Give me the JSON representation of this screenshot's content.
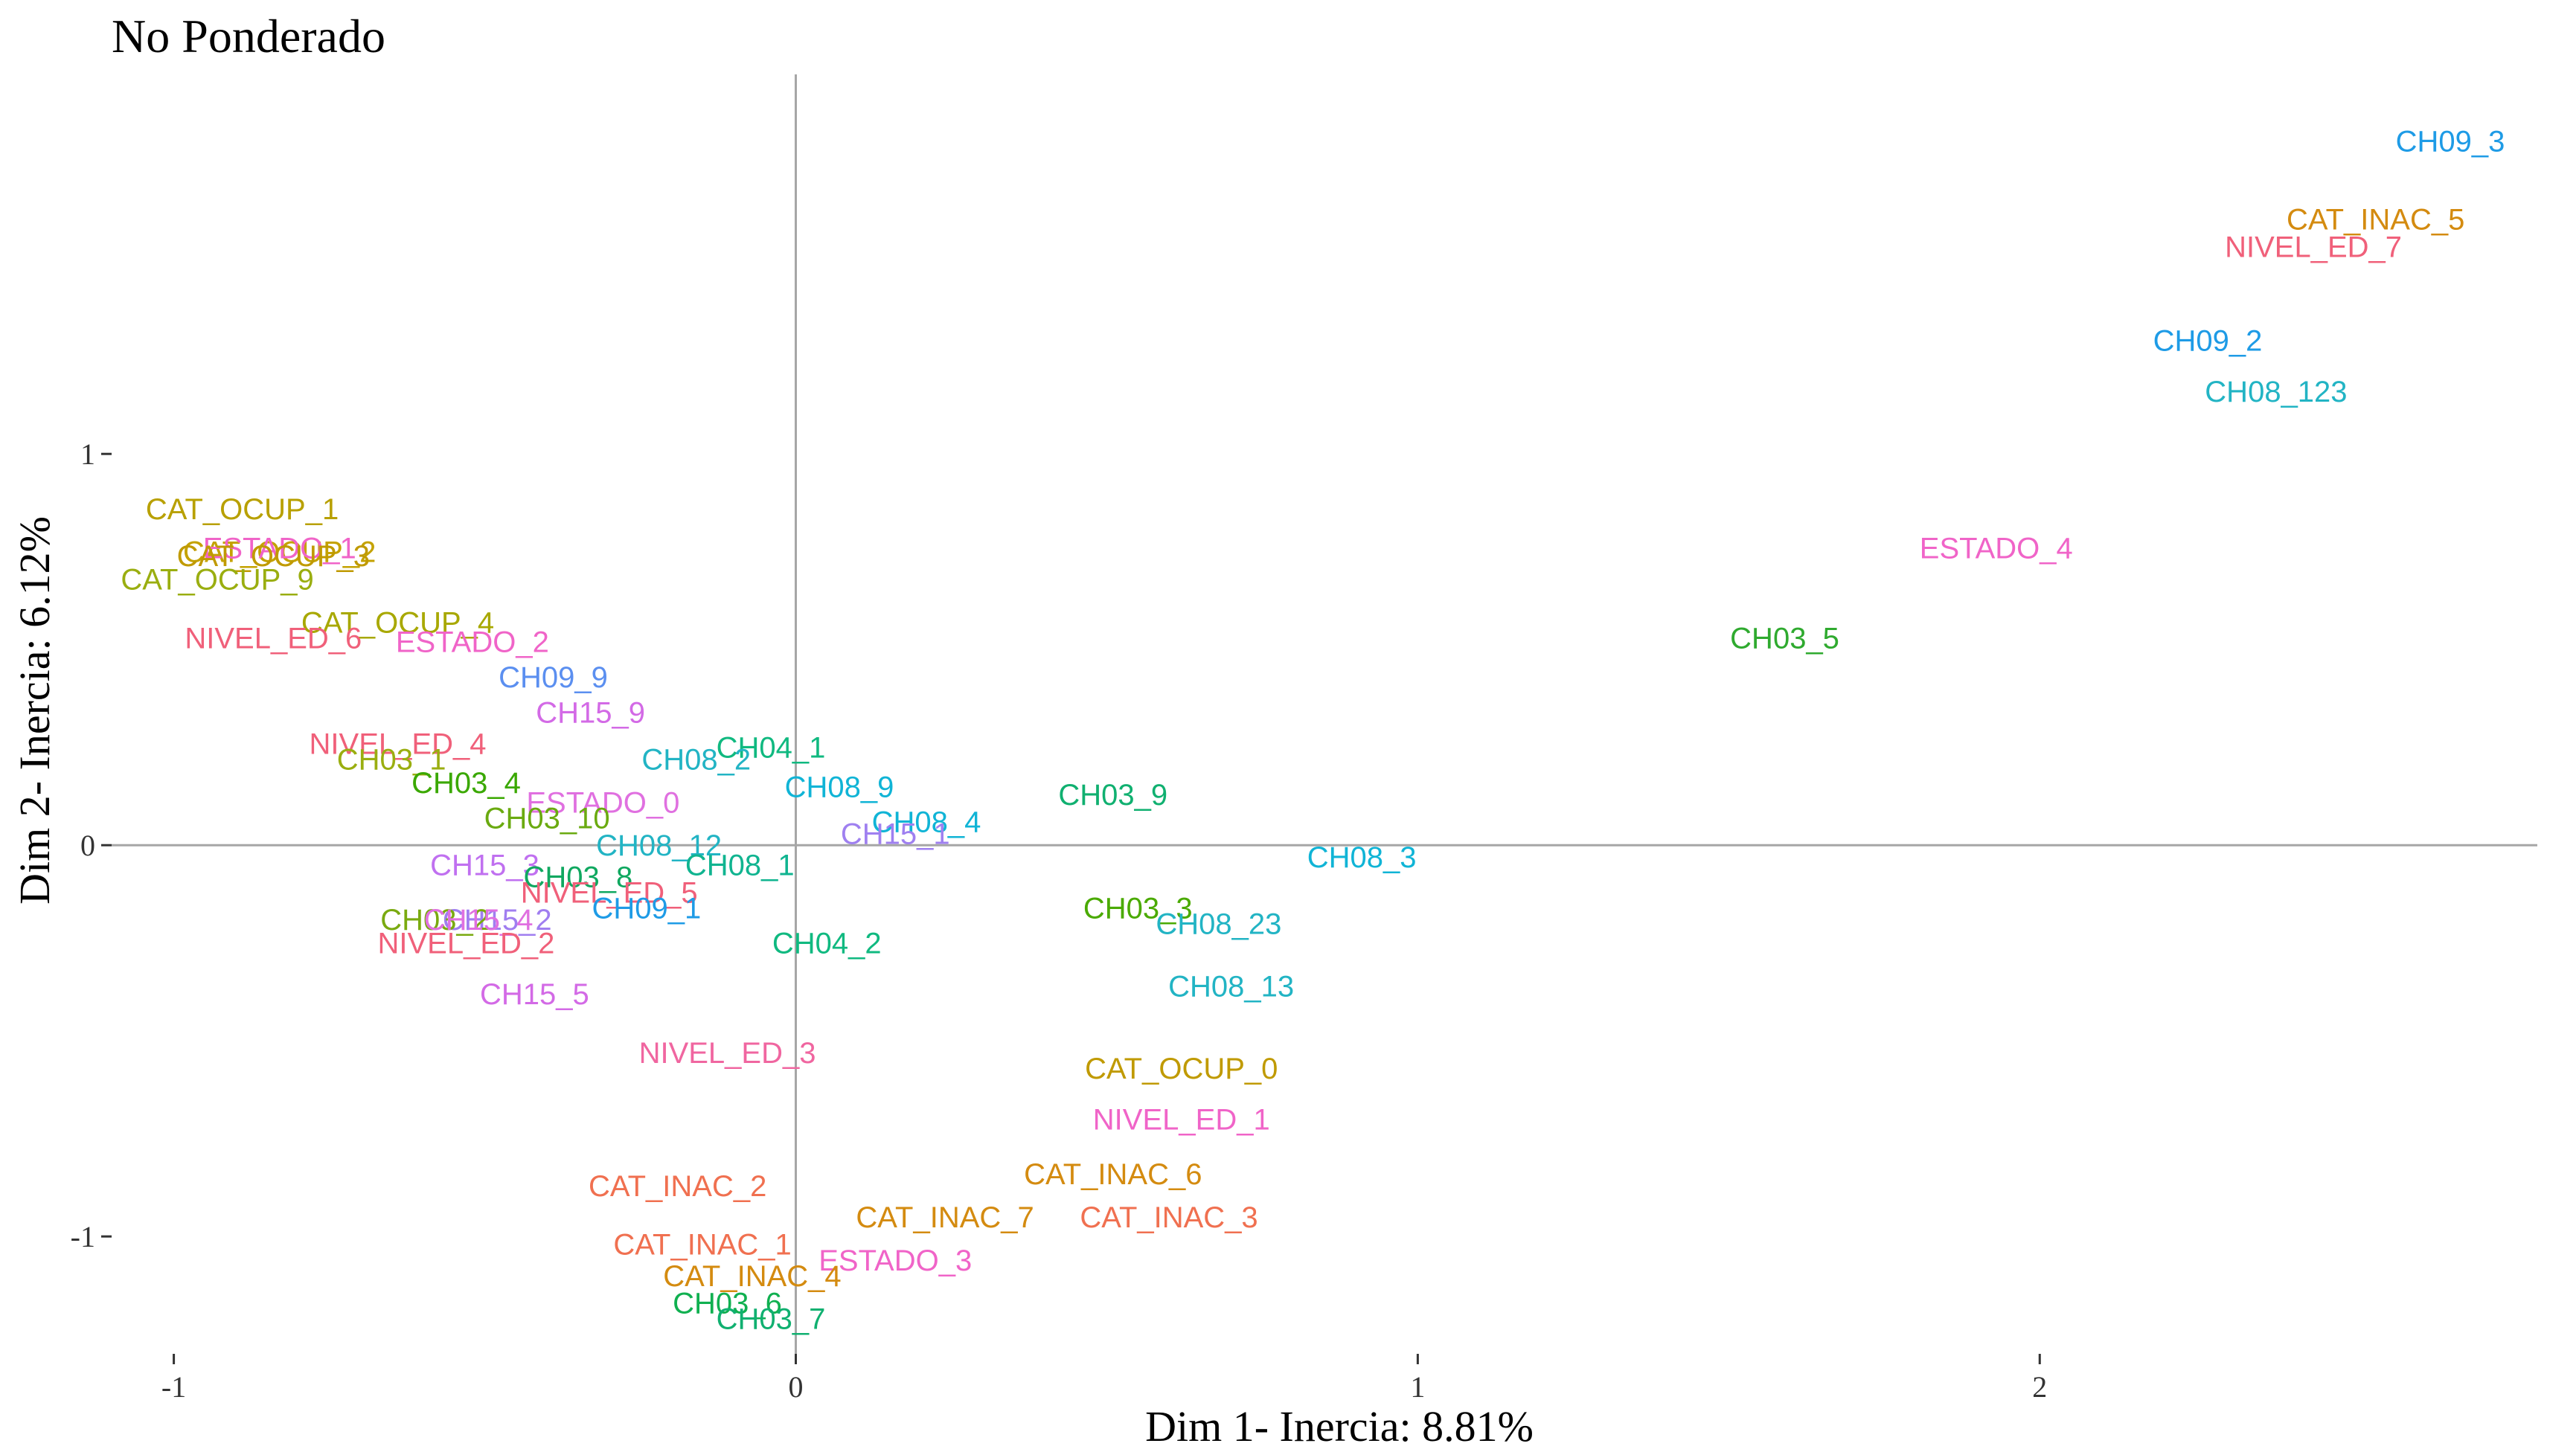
{
  "chart_data": {
    "type": "scatter",
    "title": "No Ponderado",
    "xlabel": "Dim 1- Inercia: 8.81%",
    "ylabel": "Dim 2- Inercia: 6.12%",
    "xlim": [
      -1.1,
      2.8
    ],
    "ylim": [
      -1.3,
      1.97
    ],
    "x_ticks": [
      -1,
      0,
      1,
      2
    ],
    "y_ticks": [
      -1,
      0,
      1
    ],
    "grid": false,
    "reference_lines": [
      {
        "axis": "x",
        "value": 0
      },
      {
        "axis": "y",
        "value": 0
      }
    ],
    "points": [
      {
        "label": "CH09_3",
        "x": 2.66,
        "y": 1.8,
        "color": "#1e9be6"
      },
      {
        "label": "CAT_INAC_5",
        "x": 2.54,
        "y": 1.6,
        "color": "#d48b10"
      },
      {
        "label": "NIVEL_ED_7",
        "x": 2.44,
        "y": 1.53,
        "color": "#f0607a"
      },
      {
        "label": "CH09_2",
        "x": 2.27,
        "y": 1.29,
        "color": "#1e9be6"
      },
      {
        "label": "CH08_123",
        "x": 2.38,
        "y": 1.16,
        "color": "#22b4c4"
      },
      {
        "label": "ESTADO_4",
        "x": 1.93,
        "y": 0.76,
        "color": "#f064c8"
      },
      {
        "label": "CH03_5",
        "x": 1.59,
        "y": 0.53,
        "color": "#2faa2f"
      },
      {
        "label": "CAT_OCUP_1",
        "x": -0.89,
        "y": 0.86,
        "color": "#b8a000"
      },
      {
        "label": "CAT_OCUP_2",
        "x": -0.83,
        "y": 0.75,
        "color": "#c4a200"
      },
      {
        "label": "ESTADO_1",
        "x": -0.83,
        "y": 0.76,
        "color": "#f064c8"
      },
      {
        "label": "CAT_OCUP_3",
        "x": -0.84,
        "y": 0.74,
        "color": "#c09a00"
      },
      {
        "label": "CAT_OCUP_9",
        "x": -0.93,
        "y": 0.68,
        "color": "#9aae10"
      },
      {
        "label": "CAT_OCUP_4",
        "x": -0.64,
        "y": 0.57,
        "color": "#a8a800"
      },
      {
        "label": "NIVEL_ED_6",
        "x": -0.84,
        "y": 0.53,
        "color": "#f0607a"
      },
      {
        "label": "ESTADO_2",
        "x": -0.52,
        "y": 0.52,
        "color": "#f064c8"
      },
      {
        "label": "CH09_9",
        "x": -0.39,
        "y": 0.43,
        "color": "#5b8ff0"
      },
      {
        "label": "CH15_9",
        "x": -0.33,
        "y": 0.34,
        "color": "#d36ae6"
      },
      {
        "label": "NIVEL_ED_4",
        "x": -0.64,
        "y": 0.26,
        "color": "#f0607a"
      },
      {
        "label": "CH04_1",
        "x": -0.04,
        "y": 0.25,
        "color": "#10b980"
      },
      {
        "label": "CH08_2",
        "x": -0.16,
        "y": 0.22,
        "color": "#22b4c4"
      },
      {
        "label": "CH03_1",
        "x": -0.65,
        "y": 0.22,
        "color": "#9aae10"
      },
      {
        "label": "CH03_4",
        "x": -0.53,
        "y": 0.16,
        "color": "#3aa800"
      },
      {
        "label": "CH08_9",
        "x": 0.07,
        "y": 0.15,
        "color": "#10b4d6"
      },
      {
        "label": "CH03_9",
        "x": 0.51,
        "y": 0.13,
        "color": "#10b070"
      },
      {
        "label": "ESTADO_0",
        "x": -0.31,
        "y": 0.11,
        "color": "#e070e0"
      },
      {
        "label": "CH03_10",
        "x": -0.4,
        "y": 0.07,
        "color": "#6aaa10"
      },
      {
        "label": "CH08_4",
        "x": 0.21,
        "y": 0.06,
        "color": "#10b4d6"
      },
      {
        "label": "CH15_1",
        "x": 0.16,
        "y": 0.03,
        "color": "#9f80f0"
      },
      {
        "label": "CH08_12",
        "x": -0.22,
        "y": 0.0,
        "color": "#22b4c4"
      },
      {
        "label": "CH08_1",
        "x": -0.09,
        "y": -0.05,
        "color": "#10b490"
      },
      {
        "label": "CH08_3",
        "x": 0.91,
        "y": -0.03,
        "color": "#10b4d6"
      },
      {
        "label": "CH15_3",
        "x": -0.5,
        "y": -0.05,
        "color": "#c070f0"
      },
      {
        "label": "CH03_8",
        "x": -0.35,
        "y": -0.08,
        "color": "#10a860"
      },
      {
        "label": "NIVEL_ED_5",
        "x": -0.3,
        "y": -0.12,
        "color": "#f0607a"
      },
      {
        "label": "CH09_1",
        "x": -0.24,
        "y": -0.16,
        "color": "#1e9be6"
      },
      {
        "label": "CH03_3",
        "x": 0.55,
        "y": -0.16,
        "color": "#4aaa00"
      },
      {
        "label": "CH15_2",
        "x": -0.48,
        "y": -0.19,
        "color": "#a07ef0"
      },
      {
        "label": "CH03_2",
        "x": -0.58,
        "y": -0.19,
        "color": "#7aaa10"
      },
      {
        "label": "CH15_4",
        "x": -0.51,
        "y": -0.19,
        "color": "#e070e0"
      },
      {
        "label": "CH08_23",
        "x": 0.68,
        "y": -0.2,
        "color": "#22b4c4"
      },
      {
        "label": "CH04_2",
        "x": 0.05,
        "y": -0.25,
        "color": "#10b980"
      },
      {
        "label": "NIVEL_ED_2",
        "x": -0.53,
        "y": -0.25,
        "color": "#f0607a"
      },
      {
        "label": "CH08_13",
        "x": 0.7,
        "y": -0.36,
        "color": "#22b4c4"
      },
      {
        "label": "CH15_5",
        "x": -0.42,
        "y": -0.38,
        "color": "#d36ae6"
      },
      {
        "label": "NIVEL_ED_3",
        "x": -0.11,
        "y": -0.53,
        "color": "#f066a0"
      },
      {
        "label": "CAT_OCUP_0",
        "x": 0.62,
        "y": -0.57,
        "color": "#c09a00"
      },
      {
        "label": "NIVEL_ED_1",
        "x": 0.62,
        "y": -0.7,
        "color": "#f064c8"
      },
      {
        "label": "CAT_INAC_6",
        "x": 0.51,
        "y": -0.84,
        "color": "#d48b10"
      },
      {
        "label": "CAT_INAC_2",
        "x": -0.19,
        "y": -0.87,
        "color": "#f07050"
      },
      {
        "label": "CAT_INAC_7",
        "x": 0.24,
        "y": -0.95,
        "color": "#d48b10"
      },
      {
        "label": "CAT_INAC_3",
        "x": 0.6,
        "y": -0.95,
        "color": "#f07050"
      },
      {
        "label": "CAT_INAC_1",
        "x": -0.15,
        "y": -1.02,
        "color": "#f07050"
      },
      {
        "label": "ESTADO_3",
        "x": 0.16,
        "y": -1.06,
        "color": "#f064c8"
      },
      {
        "label": "CAT_INAC_4",
        "x": -0.07,
        "y": -1.1,
        "color": "#d48b10"
      },
      {
        "label": "CH03_6",
        "x": -0.11,
        "y": -1.17,
        "color": "#10b050"
      },
      {
        "label": "CH03_7",
        "x": -0.04,
        "y": -1.21,
        "color": "#10b070"
      }
    ]
  }
}
